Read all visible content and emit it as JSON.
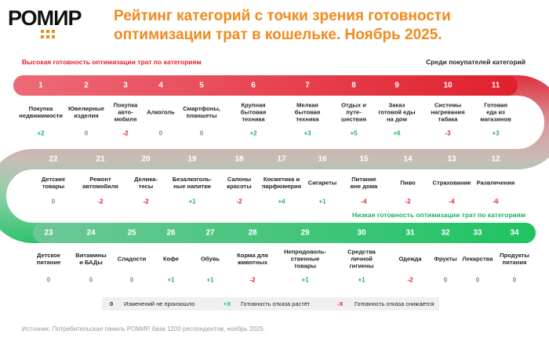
{
  "header": {
    "logo": "РОМИР",
    "title": "Рейтинг категорий с точки зрения готовности\nоптимизации трат в кошельке. Ноябрь 2025."
  },
  "labels": {
    "high": "Высокая готовность оптимизации трат по категориям",
    "audience": "Среди покупателей категорий",
    "low": "Низкая готовность оптимизации трат по категориям"
  },
  "items": [
    {
      "rank": 1,
      "name": "Покупка\nнедвижимости",
      "change": "+2"
    },
    {
      "rank": 2,
      "name": "Ювелирные\nизделия",
      "change": "0"
    },
    {
      "rank": 3,
      "name": "Покупка\nавто-\nмобиля",
      "change": "-2"
    },
    {
      "rank": 4,
      "name": "Алкоголь",
      "change": "0"
    },
    {
      "rank": 5,
      "name": "Смартфоны,\nпланшеты",
      "change": "0"
    },
    {
      "rank": 6,
      "name": "Крупная\nбытовая\nтехника",
      "change": "+2"
    },
    {
      "rank": 7,
      "name": "Мелкая\nбытовая\nтехника",
      "change": "+3"
    },
    {
      "rank": 8,
      "name": "Отдых и\nпуте-\nшествия",
      "change": "+5"
    },
    {
      "rank": 9,
      "name": "Заказ\nготовой еды\nна дом",
      "change": "+6"
    },
    {
      "rank": 10,
      "name": "Системы\nнагревания\nтабака",
      "change": "-3"
    },
    {
      "rank": 11,
      "name": "Готовая\nеда из\nмагазинов",
      "change": "+3"
    },
    {
      "rank": 12,
      "name": "Развлечения",
      "change": "-6"
    },
    {
      "rank": 13,
      "name": "Страхование",
      "change": "-4"
    },
    {
      "rank": 14,
      "name": "Пиво",
      "change": "-2"
    },
    {
      "rank": 15,
      "name": "Питание\nвне дома",
      "change": "-4"
    },
    {
      "rank": 16,
      "name": "Сигареты",
      "change": "+1"
    },
    {
      "rank": 17,
      "name": "Косметика и\nпарфюмерия",
      "change": "+4"
    },
    {
      "rank": 18,
      "name": "Салоны\nкрасоты",
      "change": "-2"
    },
    {
      "rank": 19,
      "name": "Безалкоголь-\nные напитки",
      "change": "+1"
    },
    {
      "rank": 20,
      "name": "Делика-\nтесы",
      "change": "-2"
    },
    {
      "rank": 21,
      "name": "Ремонт\nавтомобиля",
      "change": "-2"
    },
    {
      "rank": 22,
      "name": "Детские\nтовары",
      "change": "0"
    },
    {
      "rank": 23,
      "name": "Детское\nпитание",
      "change": "0"
    },
    {
      "rank": 24,
      "name": "Витамины\nи БАДы",
      "change": "0"
    },
    {
      "rank": 25,
      "name": "Сладости",
      "change": "0"
    },
    {
      "rank": 26,
      "name": "Кофе",
      "change": "+1"
    },
    {
      "rank": 27,
      "name": "Обувь",
      "change": "+1"
    },
    {
      "rank": 28,
      "name": "Корма для\nживотных",
      "change": "-2"
    },
    {
      "rank": 29,
      "name": "Непродоволь-\nственные\nтовары",
      "change": "+1"
    },
    {
      "rank": 30,
      "name": "Средства\nличной\nгигиены",
      "change": "+1"
    },
    {
      "rank": 31,
      "name": "Одежда",
      "change": "-2"
    },
    {
      "rank": 32,
      "name": "Фрукты",
      "change": "0"
    },
    {
      "rank": 33,
      "name": "Лекарства",
      "change": "0"
    },
    {
      "rank": 34,
      "name": "Продукты\nпитания",
      "change": "0"
    }
  ],
  "legend": [
    {
      "symbol": "0",
      "text": "Изменений не произошло"
    },
    {
      "symbol": "+X",
      "text": "Готовность отказа растёт"
    },
    {
      "symbol": "-X",
      "text": "Готовность отказа снижается"
    }
  ],
  "source": "Источник: Потребительская панель РОМИР, база 1200 респондентов, ноябрь 2025."
}
